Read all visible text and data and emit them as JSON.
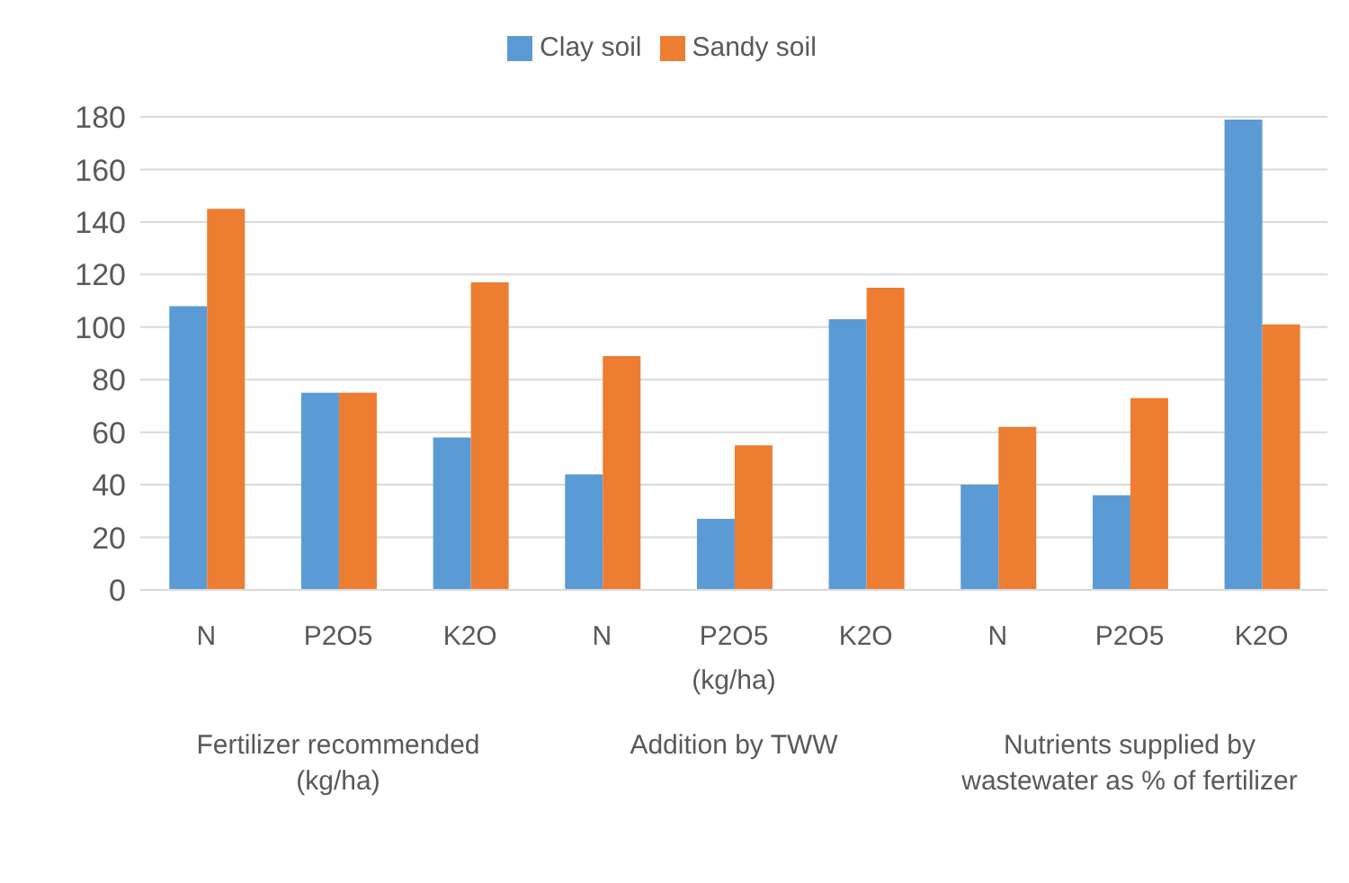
{
  "chart_data": {
    "type": "bar",
    "categories": [
      "N",
      "P2O5",
      "K2O",
      "N",
      "P2O5",
      "K2O",
      "N",
      "P2O5",
      "K2O"
    ],
    "series": [
      {
        "name": "Clay soil",
        "color": "#5b9bd5",
        "values": [
          108,
          75,
          58,
          44,
          27,
          103,
          40,
          36,
          179
        ]
      },
      {
        "name": "Sandy soil",
        "color": "#ed7d31",
        "values": [
          145,
          75,
          117,
          89,
          55,
          115,
          62,
          73,
          101
        ]
      }
    ],
    "ylim": [
      0,
      180
    ],
    "yticks": [
      0,
      20,
      40,
      60,
      80,
      100,
      120,
      140,
      160,
      180
    ],
    "grid": "y",
    "legend": "top",
    "annotations": [
      "(kg/ha)",
      "Fertilizer recommended (kg/ha)",
      "Addition by TWW",
      "Nutrients supplied by wastewater as % of fertilizer"
    ]
  }
}
